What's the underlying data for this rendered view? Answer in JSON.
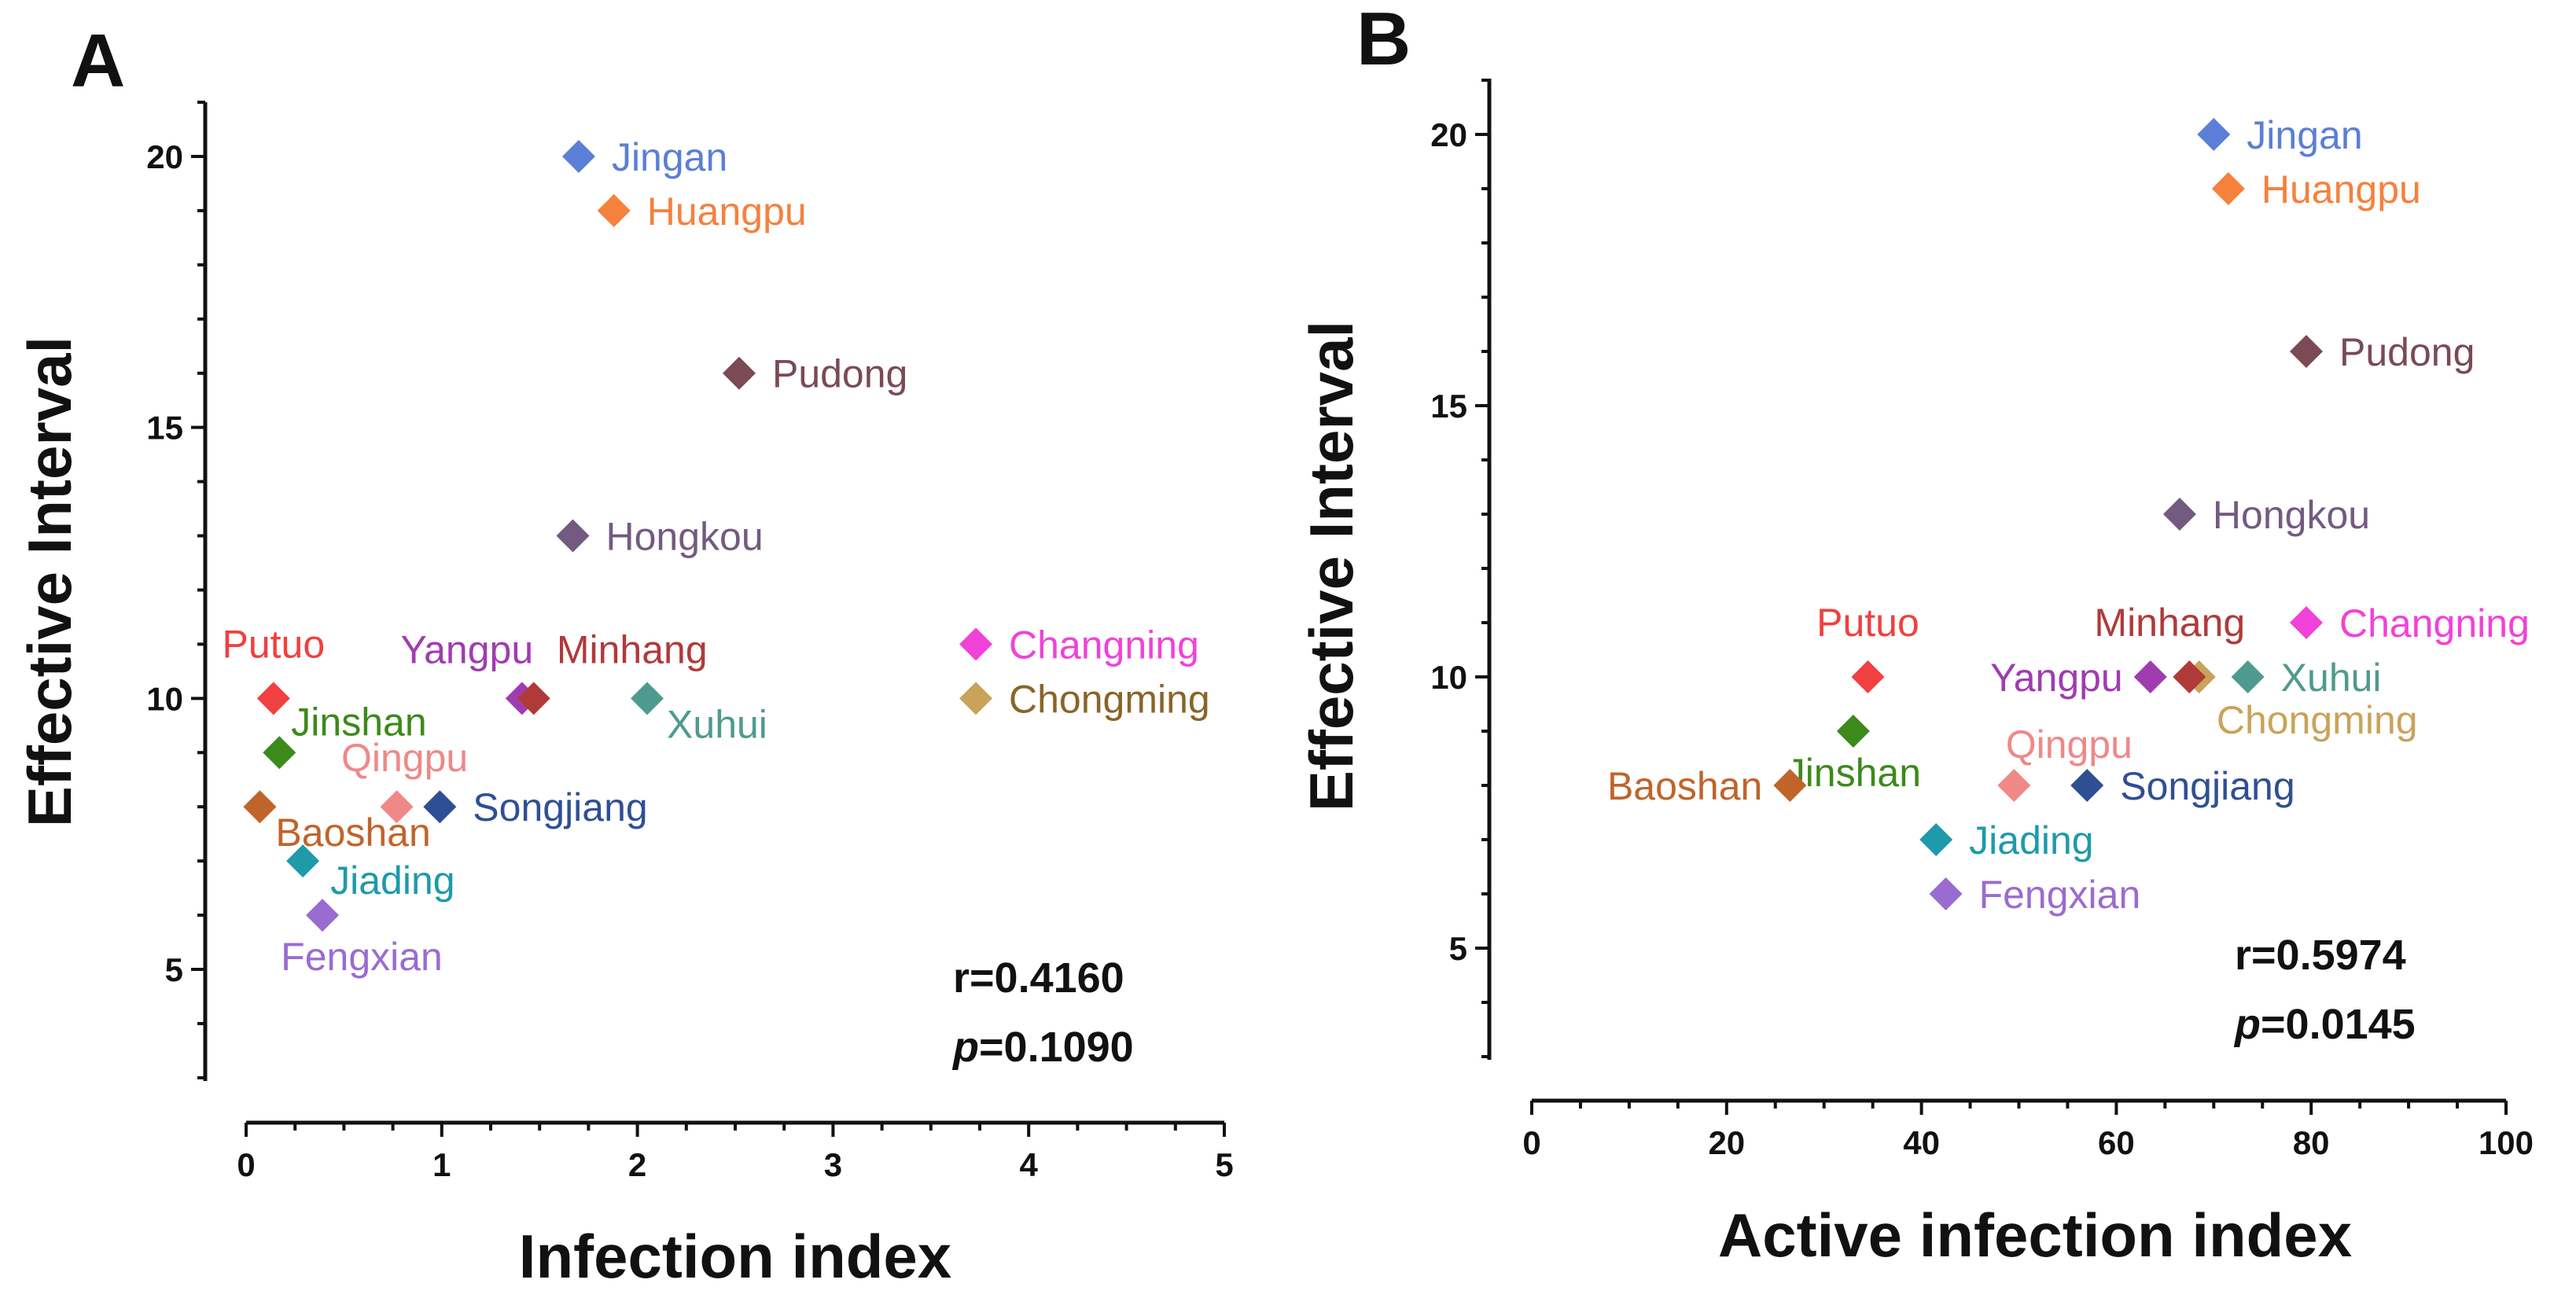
{
  "chart_data": [
    {
      "type": "scatter",
      "panel_label": "A",
      "xlabel": "Infection index",
      "ylabel": "Effective Interval",
      "xlim": [
        0,
        5
      ],
      "ylim": [
        3,
        21
      ],
      "xticks": [
        0,
        1,
        2,
        3,
        4,
        5
      ],
      "yticks": [
        5,
        10,
        15,
        20
      ],
      "grid": false,
      "stats": {
        "r": "r=0.4160",
        "p_label": "p",
        "p_value": "=0.1090"
      },
      "points": [
        {
          "name": "Jingan",
          "x": 1.7,
          "y": 20,
          "color": "#5b7fd6",
          "label_color": "#5b7fd6"
        },
        {
          "name": "Huangpu",
          "x": 1.88,
          "y": 19,
          "color": "#f5813d",
          "label_color": "#f5813d"
        },
        {
          "name": "Pudong",
          "x": 2.52,
          "y": 16,
          "color": "#7a4a55",
          "label_color": "#7a4a55"
        },
        {
          "name": "Hongkou",
          "x": 1.67,
          "y": 13,
          "color": "#735a80",
          "label_color": "#735a80"
        },
        {
          "name": "Changning",
          "x": 3.73,
          "y": 11,
          "color": "#f042d8",
          "label_color": "#f042d8"
        },
        {
          "name": "Chongming",
          "x": 3.73,
          "y": 10,
          "color": "#c9a35a",
          "label_color": "#8a6428"
        },
        {
          "name": "Putuo",
          "x": 0.14,
          "y": 10,
          "color": "#f04040",
          "label_color": "#f04040"
        },
        {
          "name": "Yangpu",
          "x": 1.41,
          "y": 10,
          "color": "#a03cb0",
          "label_color": "#a03cb0"
        },
        {
          "name": "Minhang",
          "x": 1.47,
          "y": 10,
          "color": "#b03a3a",
          "label_color": "#b03a3a"
        },
        {
          "name": "Xuhui",
          "x": 2.05,
          "y": 10,
          "color": "#4f9a8f",
          "label_color": "#4f9a8f"
        },
        {
          "name": "Jinshan",
          "x": 0.17,
          "y": 9,
          "color": "#3c8a1a",
          "label_color": "#3c8a1a"
        },
        {
          "name": "Qingpu",
          "x": 0.77,
          "y": 8,
          "color": "#f08888",
          "label_color": "#f08888"
        },
        {
          "name": "Songjiang",
          "x": 0.99,
          "y": 8,
          "color": "#2f4f94",
          "label_color": "#2f4f94"
        },
        {
          "name": "Baoshan",
          "x": 0.07,
          "y": 8,
          "color": "#c0642a",
          "label_color": "#c0642a"
        },
        {
          "name": "Jiading",
          "x": 0.29,
          "y": 7,
          "color": "#1e9aaa",
          "label_color": "#1e9aaa"
        },
        {
          "name": "Fengxian",
          "x": 0.39,
          "y": 6,
          "color": "#9a6cd0",
          "label_color": "#9a6cd0"
        }
      ]
    },
    {
      "type": "scatter",
      "panel_label": "B",
      "xlabel": "Active infection index",
      "ylabel": "Effective Interval",
      "xlim": [
        0,
        100
      ],
      "ylim": [
        3,
        21
      ],
      "xticks": [
        0,
        20,
        40,
        60,
        80,
        100
      ],
      "yticks": [
        5,
        10,
        15,
        20
      ],
      "grid": false,
      "stats": {
        "r": "r=0.5974",
        "p_label": "p",
        "p_value": "=0.0145"
      },
      "points": [
        {
          "name": "Jingan",
          "x": 70,
          "y": 20,
          "color": "#5b7fd6",
          "label_color": "#5b7fd6"
        },
        {
          "name": "Huangpu",
          "x": 71.5,
          "y": 19,
          "color": "#f5813d",
          "label_color": "#f5813d"
        },
        {
          "name": "Pudong",
          "x": 79.5,
          "y": 16,
          "color": "#7a4a55",
          "label_color": "#7a4a55"
        },
        {
          "name": "Hongkou",
          "x": 66.5,
          "y": 13,
          "color": "#735a80",
          "label_color": "#735a80"
        },
        {
          "name": "Changning",
          "x": 79.5,
          "y": 11,
          "color": "#f042d8",
          "label_color": "#f042d8"
        },
        {
          "name": "Chongming",
          "x": 68.5,
          "y": 10,
          "color": "#c9a35a",
          "label_color": "#c9a35a"
        },
        {
          "name": "Putuo",
          "x": 34.5,
          "y": 10,
          "color": "#f04040",
          "label_color": "#f04040"
        },
        {
          "name": "Yangpu",
          "x": 63.5,
          "y": 10,
          "color": "#a03cb0",
          "label_color": "#a03cb0"
        },
        {
          "name": "Minhang",
          "x": 67.5,
          "y": 10,
          "color": "#b03a3a",
          "label_color": "#b03a3a"
        },
        {
          "name": "Xuhui",
          "x": 73.5,
          "y": 10,
          "color": "#4f9a8f",
          "label_color": "#4f9a8f"
        },
        {
          "name": "Jinshan",
          "x": 33,
          "y": 9,
          "color": "#3c8a1a",
          "label_color": "#3c8a1a"
        },
        {
          "name": "Qingpu",
          "x": 49.5,
          "y": 8,
          "color": "#f08888",
          "label_color": "#f08888"
        },
        {
          "name": "Songjiang",
          "x": 57,
          "y": 8,
          "color": "#2f4f94",
          "label_color": "#2f4f94"
        },
        {
          "name": "Baoshan",
          "x": 26.5,
          "y": 8,
          "color": "#c0642a",
          "label_color": "#c0642a"
        },
        {
          "name": "Jiading",
          "x": 41.5,
          "y": 7,
          "color": "#1e9aaa",
          "label_color": "#1e9aaa"
        },
        {
          "name": "Fengxian",
          "x": 42.5,
          "y": 6,
          "color": "#9a6cd0",
          "label_color": "#9a6cd0"
        }
      ]
    }
  ]
}
